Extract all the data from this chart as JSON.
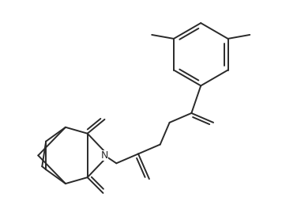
{
  "bg_color": "#ffffff",
  "line_color": "#2a2a2a",
  "line_width": 1.4,
  "figsize": [
    3.57,
    2.78
  ],
  "dpi": 100
}
